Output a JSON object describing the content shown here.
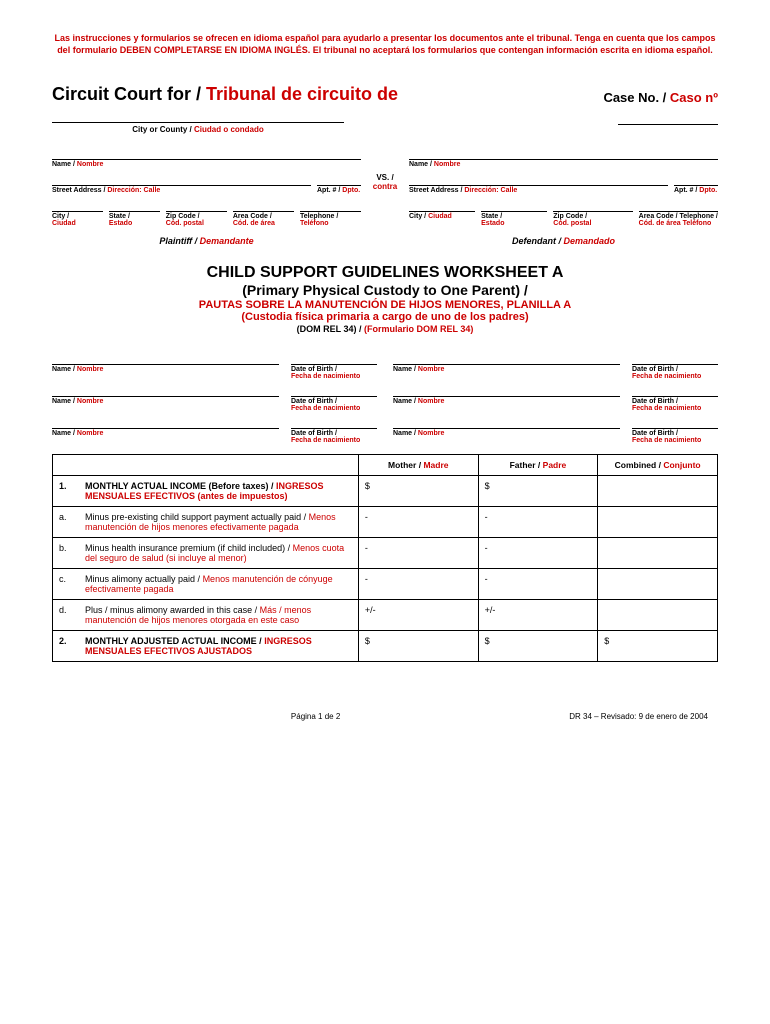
{
  "notice": {
    "part1": "Las instrucciones y formularios se ofrecen en idioma español para ayudarlo a presentar los documentos ante el tribunal. Tenga en cuenta que los campos del formulario ",
    "bold": "DEBEN COMPLETARSE EN IDIOMA INGLÉS",
    "part2": ". El tribunal no aceptará los formularios que contengan información escrita en idioma español."
  },
  "header": {
    "court_en": "Circuit Court for / ",
    "court_es": "Tribunal de circuito de",
    "caseno_en": "Case No. / ",
    "caseno_es": "Caso nº",
    "city_en": "City or County / ",
    "city_es": "Ciudad o condado"
  },
  "vs": {
    "en": "VS. /",
    "es": "contra"
  },
  "labels": {
    "name_en": "Name / ",
    "name_es": "Nombre",
    "street_en": "Street Address  / ",
    "street_es": "Dirección: Calle",
    "apt_en": "Apt. # / ",
    "apt_es": "Dpto.",
    "city_en": "City /",
    "city_es": "Ciudad",
    "state_en": "State /",
    "state_es": "Estado",
    "zip_en": "Zip Code /",
    "zip_es": "Cód. postal",
    "area_en": "Area Code /",
    "area_es": "Cód. de área",
    "tel_en": "Telephone /",
    "tel_es": "Teléfono",
    "plaintiff_en": "Plaintiff / ",
    "plaintiff_es": "Demandante",
    "defendant_en": "Defendant / ",
    "defendant_es": "Demandado",
    "dob_en": "Date of Birth /",
    "dob_es": "Fecha de nacimiento"
  },
  "title": {
    "main": "CHILD SUPPORT GUIDELINES WORKSHEET A",
    "sub": "(Primary Physical Custody to One Parent) /",
    "es1": "PAUTAS SOBRE LA MANUTENCIÓN DE HIJOS MENORES, PLANILLA A",
    "es2": "(Custodia física primaria a cargo de uno de los padres)",
    "form_en": "(DOM REL 34) / ",
    "form_es": "(Formulario DOM REL 34)"
  },
  "table": {
    "hdr_mother_en": "Mother / ",
    "hdr_mother_es": "Madre",
    "hdr_father_en": "Father / ",
    "hdr_father_es": "Padre",
    "hdr_comb_en": "Combined / ",
    "hdr_comb_es": "Conjunto",
    "rows": [
      {
        "num": "1.",
        "en": "MONTHLY ACTUAL INCOME (Before taxes) /",
        "es": "INGRESOS MENSUALES EFECTIVOS (antes de impuestos)",
        "m": "$",
        "f": "$",
        "c": "",
        "bold": true
      },
      {
        "num": "a.",
        "en": "Minus pre-existing child support payment actually paid / ",
        "es": "Menos manutención de hijos menores efectivamente pagada",
        "m": "-",
        "f": "-",
        "c": ""
      },
      {
        "num": "b.",
        "en": "Minus health insurance premium (if child included) / ",
        "es": "Menos cuota del seguro de salud (si incluye al menor)",
        "m": "-",
        "f": "-",
        "c": ""
      },
      {
        "num": "c.",
        "en": "Minus alimony actually paid / ",
        "es": "Menos manutención de cónyuge efectivamente pagada",
        "m": "-",
        "f": "-",
        "c": ""
      },
      {
        "num": "d.",
        "en": "Plus / minus alimony awarded in this case / ",
        "es": "Más / menos manutención de hijos menores otorgada en este caso",
        "m": "+/-",
        "f": "+/-",
        "c": ""
      },
      {
        "num": "2.",
        "en": "MONTHLY ADJUSTED ACTUAL INCOME /",
        "es": "INGRESOS MENSUALES EFECTIVOS AJUSTADOS",
        "m": "$",
        "f": "$",
        "c": "$",
        "bold": true
      }
    ]
  },
  "footer": {
    "page": "Página 1  de 2",
    "rev": "DR 34 – Revisado: 9 de enero de 2004"
  }
}
